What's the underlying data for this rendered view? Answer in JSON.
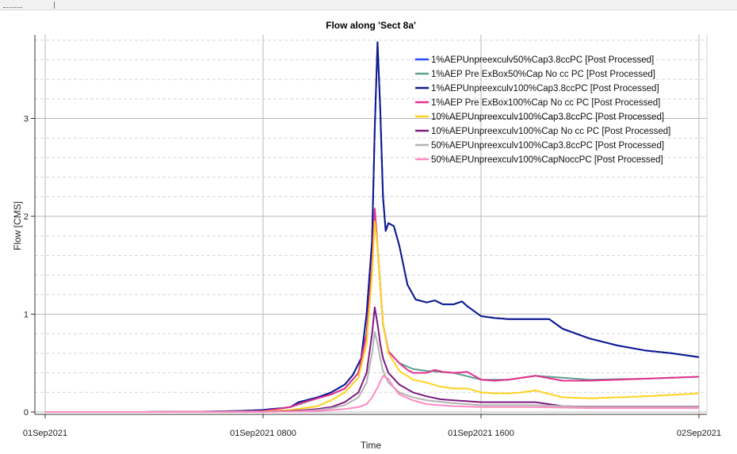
{
  "chart_data": {
    "type": "line",
    "title": "Flow along 'Sect 8a'",
    "xlabel": "Time",
    "ylabel": "Flow [CMS]",
    "x_unit": "hours from 01Sep2021 0000",
    "xlim": [
      0,
      24
    ],
    "ylim": [
      0,
      3.8
    ],
    "x_ticks": [
      {
        "value": 0,
        "label": "01Sep2021"
      },
      {
        "value": 8,
        "label": "01Sep2021 0800"
      },
      {
        "value": 16,
        "label": "01Sep2021 1600"
      },
      {
        "value": 24,
        "label": "02Sep2021"
      }
    ],
    "y_ticks": [
      {
        "value": 0,
        "label": "0"
      },
      {
        "value": 1,
        "label": "1"
      },
      {
        "value": 2,
        "label": "2"
      },
      {
        "value": 3,
        "label": "3"
      }
    ],
    "grid": true,
    "legend_position": "top-right",
    "series": [
      {
        "name": "1%AEPUnpreexculv50%Cap3.8ccPC [Post Processed]",
        "color": "#2e4bff",
        "x": [
          0,
          3.5,
          6,
          7,
          8,
          8.3,
          8.7,
          9,
          9.3,
          10,
          10.5,
          11,
          11.3,
          11.6,
          11.8,
          12,
          12.1,
          12.2,
          12.3,
          12.4,
          12.5,
          12.6,
          12.8,
          13,
          13.3,
          13.6,
          14,
          14.3,
          14.6,
          15,
          15.3,
          15.5,
          16,
          16.5,
          17,
          17.5,
          18,
          18.5,
          19,
          20,
          21,
          22,
          23,
          24
        ],
        "y": [
          0,
          0,
          0.005,
          0.01,
          0.02,
          0.03,
          0.04,
          0.05,
          0.1,
          0.15,
          0.2,
          0.28,
          0.38,
          0.55,
          1.0,
          1.75,
          2.9,
          3.78,
          3.1,
          2.2,
          1.85,
          1.93,
          1.9,
          1.7,
          1.3,
          1.15,
          1.12,
          1.14,
          1.1,
          1.1,
          1.13,
          1.08,
          0.98,
          0.96,
          0.95,
          0.95,
          0.95,
          0.95,
          0.85,
          0.75,
          0.68,
          0.63,
          0.6,
          0.56
        ]
      },
      {
        "name": "1%AEP Pre ExBox50%Cap No cc PC [Post Processed]",
        "color": "#5f9e8f",
        "x": [
          0,
          3.5,
          7,
          8,
          9,
          10,
          10.5,
          11,
          11.5,
          11.8,
          12,
          12.1,
          12.2,
          12.3,
          12.4,
          12.6,
          13,
          13.5,
          14,
          15,
          16,
          17,
          18,
          20,
          22,
          24
        ],
        "y": [
          0,
          0,
          0.005,
          0.01,
          0.05,
          0.14,
          0.18,
          0.24,
          0.4,
          0.8,
          1.5,
          1.95,
          1.7,
          1.3,
          0.9,
          0.62,
          0.5,
          0.44,
          0.42,
          0.4,
          0.33,
          0.33,
          0.37,
          0.33,
          0.34,
          0.36
        ]
      },
      {
        "name": "1%AEPUnpreexculv100%Cap3.8ccPC [Post Processed]",
        "color": "#0f1a8c",
        "x": [
          0,
          3.5,
          6,
          7,
          8,
          8.3,
          8.7,
          9,
          9.3,
          10,
          10.5,
          11,
          11.3,
          11.6,
          11.8,
          12,
          12.1,
          12.2,
          12.3,
          12.4,
          12.5,
          12.6,
          12.8,
          13,
          13.3,
          13.6,
          14,
          14.3,
          14.6,
          15,
          15.3,
          15.5,
          16,
          16.5,
          17,
          17.5,
          18,
          18.5,
          19,
          20,
          21,
          22,
          23,
          24
        ],
        "y": [
          0,
          0,
          0.005,
          0.01,
          0.02,
          0.03,
          0.04,
          0.05,
          0.1,
          0.15,
          0.2,
          0.28,
          0.38,
          0.55,
          1.0,
          1.75,
          2.9,
          3.78,
          3.1,
          2.2,
          1.85,
          1.93,
          1.9,
          1.7,
          1.3,
          1.15,
          1.12,
          1.14,
          1.1,
          1.1,
          1.13,
          1.08,
          0.98,
          0.96,
          0.95,
          0.95,
          0.95,
          0.95,
          0.85,
          0.75,
          0.68,
          0.63,
          0.6,
          0.56
        ]
      },
      {
        "name": "1%AEP Pre ExBox100%Cap No cc PC [Post Processed]",
        "color": "#e4308e",
        "x": [
          0,
          3.5,
          7,
          8,
          9,
          9.5,
          10,
          10.5,
          11,
          11.5,
          11.8,
          12,
          12.1,
          12.2,
          12.3,
          12.4,
          12.6,
          13,
          13.3,
          13.5,
          14,
          14.3,
          14.6,
          15,
          15.5,
          16,
          16.5,
          17,
          17.5,
          18,
          19,
          20,
          21,
          22,
          23,
          24
        ],
        "y": [
          0,
          0,
          0.005,
          0.01,
          0.05,
          0.1,
          0.14,
          0.18,
          0.24,
          0.4,
          0.8,
          1.5,
          2.08,
          1.7,
          1.3,
          0.9,
          0.62,
          0.5,
          0.43,
          0.4,
          0.4,
          0.43,
          0.41,
          0.4,
          0.41,
          0.33,
          0.32,
          0.33,
          0.35,
          0.37,
          0.32,
          0.32,
          0.33,
          0.34,
          0.35,
          0.36
        ]
      },
      {
        "name": "10%AEPUnpreexculv100%Cap3.8ccPC [Post Processed]",
        "color": "#ffd21e",
        "x": [
          0,
          3.5,
          8,
          9,
          10,
          10.5,
          11,
          11.5,
          11.8,
          12,
          12.1,
          12.2,
          12.3,
          12.4,
          12.6,
          13,
          13.5,
          14,
          14.5,
          15,
          15.5,
          16,
          16.5,
          17,
          17.5,
          18,
          19,
          20,
          22,
          24
        ],
        "y": [
          0,
          0,
          0.005,
          0.02,
          0.06,
          0.12,
          0.2,
          0.35,
          0.7,
          1.4,
          1.95,
          1.7,
          1.3,
          0.9,
          0.6,
          0.42,
          0.33,
          0.3,
          0.26,
          0.24,
          0.24,
          0.2,
          0.19,
          0.19,
          0.2,
          0.22,
          0.15,
          0.14,
          0.16,
          0.19
        ]
      },
      {
        "name": "10%AEPUnpreexculv100%Cap No cc PC [Post Processed]",
        "color": "#7b1a7f",
        "x": [
          0,
          3.5,
          8,
          9,
          10,
          10.5,
          11,
          11.5,
          11.8,
          12,
          12.1,
          12.2,
          12.3,
          12.4,
          12.6,
          13,
          13.5,
          14,
          14.5,
          15,
          15.5,
          16,
          17,
          18,
          19,
          20,
          22,
          24
        ],
        "y": [
          0,
          0,
          0.002,
          0.01,
          0.03,
          0.05,
          0.1,
          0.2,
          0.4,
          0.8,
          1.07,
          0.9,
          0.7,
          0.55,
          0.4,
          0.28,
          0.2,
          0.16,
          0.13,
          0.12,
          0.11,
          0.1,
          0.1,
          0.1,
          0.06,
          0.055,
          0.055,
          0.055
        ]
      },
      {
        "name": "50%AEPUnpreexculv100%Cap3.8ccPC [Post Processed]",
        "color": "#b3b3b3",
        "x": [
          0,
          3.5,
          8,
          9,
          10,
          10.5,
          11,
          11.5,
          11.8,
          12,
          12.1,
          12.2,
          12.3,
          12.4,
          12.6,
          13,
          13.5,
          14,
          15,
          16,
          17,
          18,
          20,
          24
        ],
        "y": [
          0,
          0,
          0.002,
          0.005,
          0.02,
          0.04,
          0.07,
          0.15,
          0.3,
          0.6,
          0.82,
          0.7,
          0.55,
          0.42,
          0.3,
          0.2,
          0.15,
          0.12,
          0.09,
          0.07,
          0.07,
          0.07,
          0.05,
          0.05
        ]
      },
      {
        "name": "50%AEPUnpreexculv100%CapNoccPC [Post Processed]",
        "color": "#ff8ac2",
        "x": [
          0,
          3.5,
          8,
          9,
          10,
          10.5,
          11,
          11.5,
          11.8,
          12,
          12.2,
          12.4,
          12.6,
          12.8,
          13,
          13.5,
          14,
          15,
          16,
          17,
          18,
          20,
          24
        ],
        "y": [
          0,
          0,
          0.002,
          0.005,
          0.01,
          0.02,
          0.03,
          0.05,
          0.08,
          0.15,
          0.25,
          0.37,
          0.34,
          0.25,
          0.18,
          0.12,
          0.08,
          0.06,
          0.05,
          0.05,
          0.05,
          0.04,
          0.04
        ]
      }
    ]
  }
}
